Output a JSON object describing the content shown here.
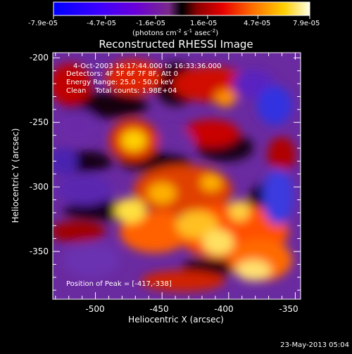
{
  "colorbar": {
    "ticks": [
      "-7.9e-05",
      "-4.7e-05",
      "-1.6e-05",
      "1.6e-05",
      "4.7e-05",
      "7.9e-05"
    ],
    "tick_values": [
      -7.9e-05,
      -4.7e-05,
      -1.6e-05,
      1.6e-05,
      4.7e-05,
      7.9e-05
    ],
    "range": [
      -7.9e-05,
      7.9e-05
    ],
    "units_main": "(photons cm",
    "units_sup1": "-2",
    "units_mid": " s",
    "units_sup2": "-1",
    "units_end": " asec",
    "units_sup3": "-2",
    "units_close": ")"
  },
  "plot": {
    "title": "Reconstructed RHESSI Image",
    "xlabel": "Heliocentric X (arcsec)",
    "ylabel": "Heliocentric Y (arcsec)",
    "x_ticks": [
      "-500",
      "-450",
      "-400",
      "-350"
    ],
    "x_tick_values": [
      -500,
      -450,
      -400,
      -350
    ],
    "y_ticks": [
      "-200",
      "-250",
      "-300",
      "-350"
    ],
    "y_tick_values": [
      -200,
      -250,
      -300,
      -350
    ],
    "xlim": [
      -532,
      -346
    ],
    "ylim": [
      -387,
      -196
    ]
  },
  "annotations": {
    "time_range": "4-Oct-2003 16:17:44.000 to 16:33:36.000",
    "detectors": "Detectors: 4F 5F 6F 7F 8F, Att 0",
    "energy": "Energy Range: 25.0 - 50.0 keV",
    "clean": "Clean    Total counts: 1.98E+04",
    "peak": "Position of Peak = [-417,-338]"
  },
  "footer": {
    "date": "23-May-2013 05:04"
  }
}
